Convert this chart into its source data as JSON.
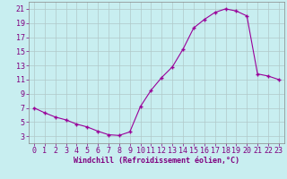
{
  "x": [
    0,
    1,
    2,
    3,
    4,
    5,
    6,
    7,
    8,
    9,
    10,
    11,
    12,
    13,
    14,
    15,
    16,
    17,
    18,
    19,
    20,
    21,
    22,
    23
  ],
  "y": [
    7.0,
    6.3,
    5.7,
    5.3,
    4.7,
    4.3,
    3.7,
    3.2,
    3.1,
    3.6,
    7.2,
    9.5,
    11.3,
    12.8,
    15.3,
    18.3,
    19.5,
    20.5,
    21.0,
    20.7,
    20.0,
    11.8,
    11.5,
    11.0
  ],
  "xlabel": "Windchill (Refroidissement éolien,°C)",
  "line_color": "#990099",
  "marker_color": "#990099",
  "bg_color": "#c8eef0",
  "grid_color": "#b0c8c8",
  "text_color": "#800080",
  "ylim": [
    2,
    22
  ],
  "xlim": [
    -0.5,
    23.5
  ],
  "yticks": [
    3,
    5,
    7,
    9,
    11,
    13,
    15,
    17,
    19,
    21
  ],
  "xticks": [
    0,
    1,
    2,
    3,
    4,
    5,
    6,
    7,
    8,
    9,
    10,
    11,
    12,
    13,
    14,
    15,
    16,
    17,
    18,
    19,
    20,
    21,
    22,
    23
  ],
  "xlabel_fontsize": 6.0,
  "tick_fontsize": 6.0
}
